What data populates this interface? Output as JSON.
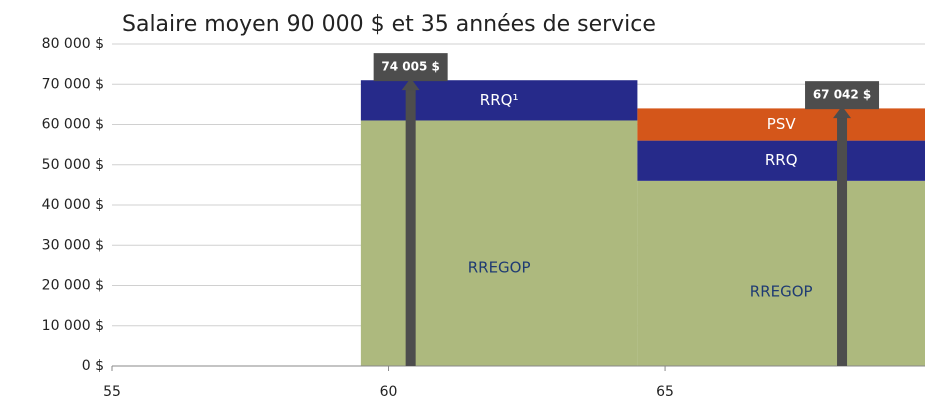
{
  "chart_data": {
    "type": "step-area",
    "title": "Salaire moyen 90 000 $ et 35 années de service",
    "x": [
      59.5,
      64.5
    ],
    "series": [
      {
        "color": "#adb97e",
        "text_color": "#1f3b73",
        "values": [
          61000,
          46000
        ],
        "value_labels": [
          "RREGOP",
          "RREGOP"
        ]
      },
      {
        "color": "#262a8a",
        "text_color": "#ffffff",
        "values": [
          10000,
          10000
        ],
        "value_labels": [
          "RRQ¹",
          "RRQ"
        ]
      },
      {
        "color": "#d4561a",
        "text_color": "#ffffff",
        "values": [
          null,
          8000
        ],
        "value_labels": [
          null,
          "PSV"
        ]
      }
    ],
    "annotations": [
      {
        "x": 60.4,
        "value": 74005,
        "label": "74 005 $"
      },
      {
        "x": 68.2,
        "value": 67042,
        "label": "67 042 $"
      }
    ],
    "xlim": [
      55,
      69.7
    ],
    "xticks": [
      55,
      60,
      65
    ],
    "ylim": [
      0,
      80000
    ],
    "yticks": [
      {
        "value": 0,
        "label": "0 $"
      },
      {
        "value": 10000,
        "label": "10 000 $"
      },
      {
        "value": 20000,
        "label": "20 000 $"
      },
      {
        "value": 30000,
        "label": "30 000 $"
      },
      {
        "value": 40000,
        "label": "40 000 $"
      },
      {
        "value": 50000,
        "label": "50 000 $"
      },
      {
        "value": 60000,
        "label": "60 000 $"
      },
      {
        "value": 70000,
        "label": "70 000 $"
      },
      {
        "value": 80000,
        "label": "80 000 $"
      }
    ],
    "grid": true
  }
}
